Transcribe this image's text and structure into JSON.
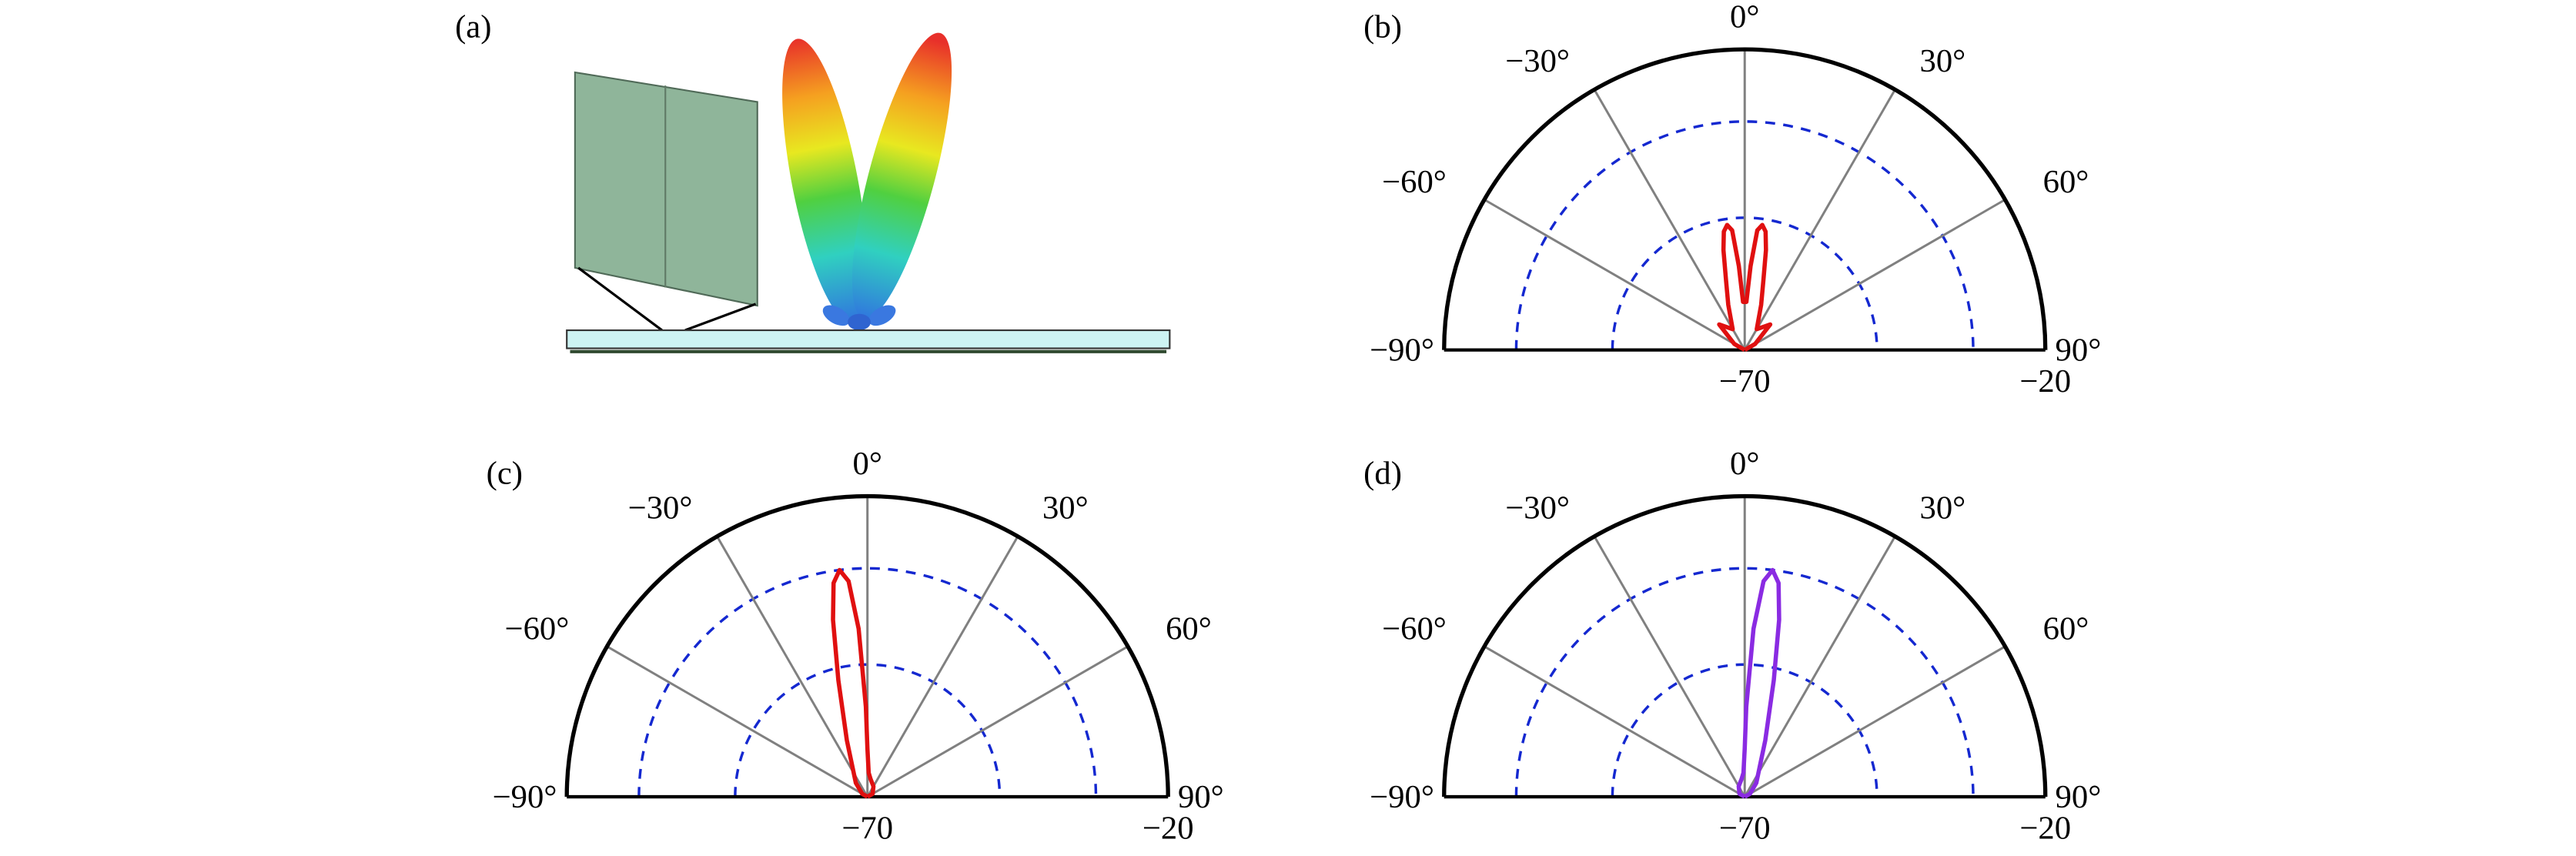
{
  "illustration": {
    "label": "(a)"
  },
  "chart_data": [
    {
      "type": "polar",
      "panel_label": "(b)",
      "x": [
        -90,
        -60,
        -45,
        -30,
        -20,
        -15,
        -12,
        -10,
        -8,
        -6,
        -4,
        -2,
        0,
        2,
        4,
        6,
        8,
        10,
        12,
        15,
        20,
        30,
        45,
        60,
        90
      ],
      "series": [
        {
          "color": "#e01010",
          "values": [
            -70,
            -68,
            -64,
            -66,
            -62,
            -58,
            -53,
            -50,
            -49,
            -50,
            -56,
            -62,
            -62,
            -62,
            -56,
            -50,
            -49,
            -50,
            -53,
            -58,
            -62,
            -66,
            -64,
            -68,
            -70
          ]
        }
      ],
      "xlim": [
        -90,
        90
      ],
      "xticks": [
        {
          "value": -90,
          "label": "−90°"
        },
        {
          "value": -60,
          "label": "−60°"
        },
        {
          "value": -30,
          "label": "−30°"
        },
        {
          "value": 0,
          "label": "0°"
        },
        {
          "value": 30,
          "label": "30°"
        },
        {
          "value": 60,
          "label": "60°"
        },
        {
          "value": 90,
          "label": "90°"
        }
      ],
      "ylim": [
        -70,
        -20
      ],
      "yticks": [
        {
          "value": -70,
          "label": "−70"
        },
        {
          "value": -20,
          "label": "−20"
        }
      ],
      "rgrid": [
        -48,
        -32
      ]
    },
    {
      "type": "polar",
      "panel_label": "(c)",
      "x": [
        -90,
        -60,
        -40,
        -20,
        -14,
        -11,
        -9,
        -7,
        -5,
        -3,
        -1,
        0,
        3,
        10,
        30,
        60,
        90
      ],
      "series": [
        {
          "color": "#e01010",
          "values": [
            -70,
            -69,
            -67,
            -60,
            -50,
            -40,
            -34,
            -32,
            -34,
            -42,
            -55,
            -62,
            -66,
            -67,
            -68,
            -69,
            -70
          ]
        }
      ],
      "xlim": [
        -90,
        90
      ],
      "xticks": [
        {
          "value": -90,
          "label": "−90°"
        },
        {
          "value": -60,
          "label": "−60°"
        },
        {
          "value": -30,
          "label": "−30°"
        },
        {
          "value": 0,
          "label": "0°"
        },
        {
          "value": 30,
          "label": "30°"
        },
        {
          "value": 60,
          "label": "60°"
        },
        {
          "value": 90,
          "label": "90°"
        }
      ],
      "ylim": [
        -70,
        -20
      ],
      "yticks": [
        {
          "value": -70,
          "label": "−70"
        },
        {
          "value": -20,
          "label": "−20"
        }
      ],
      "rgrid": [
        -48,
        -32
      ]
    },
    {
      "type": "polar",
      "panel_label": "(d)",
      "x": [
        -90,
        -60,
        -30,
        -10,
        -3,
        0,
        1,
        3,
        5,
        7,
        9,
        11,
        14,
        20,
        40,
        60,
        90
      ],
      "series": [
        {
          "color": "#8a2be2",
          "values": [
            -70,
            -69,
            -68,
            -67,
            -66,
            -62,
            -55,
            -42,
            -34,
            -32,
            -34,
            -40,
            -50,
            -60,
            -67,
            -69,
            -70
          ]
        }
      ],
      "xlim": [
        -90,
        90
      ],
      "xticks": [
        {
          "value": -90,
          "label": "−90°"
        },
        {
          "value": -60,
          "label": "−60°"
        },
        {
          "value": -30,
          "label": "−30°"
        },
        {
          "value": 0,
          "label": "0°"
        },
        {
          "value": 30,
          "label": "30°"
        },
        {
          "value": 60,
          "label": "60°"
        },
        {
          "value": 90,
          "label": "90°"
        }
      ],
      "ylim": [
        -70,
        -20
      ],
      "yticks": [
        {
          "value": -70,
          "label": "−70"
        },
        {
          "value": -20,
          "label": "−20"
        }
      ],
      "rgrid": [
        -48,
        -32
      ]
    }
  ]
}
